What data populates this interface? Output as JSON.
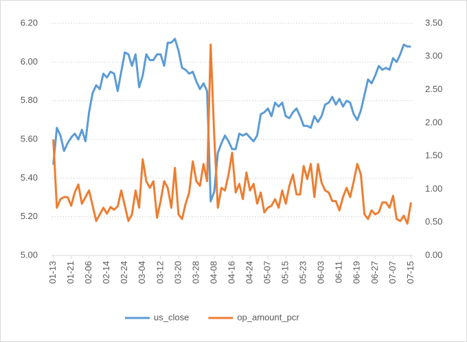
{
  "chart_data": {
    "type": "line",
    "categories": [
      "01-13",
      null,
      null,
      null,
      null,
      "01-21",
      null,
      null,
      null,
      null,
      "02-06",
      null,
      null,
      null,
      null,
      "02-14",
      null,
      null,
      null,
      null,
      "02-24",
      null,
      null,
      null,
      null,
      "03-04",
      null,
      null,
      null,
      null,
      "03-12",
      null,
      null,
      null,
      null,
      "03-20",
      null,
      null,
      null,
      null,
      "03-28",
      null,
      null,
      null,
      null,
      "04-08",
      null,
      null,
      null,
      null,
      "04-16",
      null,
      null,
      null,
      null,
      "04-24",
      null,
      null,
      null,
      null,
      "05-07",
      null,
      null,
      null,
      null,
      "05-15",
      null,
      null,
      null,
      null,
      "05-23",
      null,
      null,
      null,
      null,
      "06-03",
      null,
      null,
      null,
      null,
      "06-11",
      null,
      null,
      null,
      null,
      "06-19",
      null,
      null,
      null,
      null,
      "06-27",
      null,
      null,
      null,
      null,
      "07-07",
      null,
      null,
      null,
      null,
      "07-15"
    ],
    "series": [
      {
        "name": "us_close",
        "color": "#5b9bd5",
        "values": [
          5.47,
          5.66,
          5.62,
          5.54,
          5.58,
          5.61,
          5.63,
          5.6,
          5.65,
          5.59,
          5.74,
          5.84,
          5.88,
          5.86,
          5.94,
          5.92,
          5.95,
          5.94,
          5.85,
          5.95,
          6.05,
          6.04,
          5.98,
          6.04,
          5.87,
          5.93,
          6.04,
          6.01,
          6.01,
          6.04,
          6.04,
          5.98,
          6.1,
          6.1,
          6.12,
          6.06,
          5.97,
          5.96,
          5.94,
          5.95,
          5.9,
          5.86,
          5.89,
          5.85,
          5.28,
          5.33,
          5.53,
          5.58,
          5.62,
          5.59,
          5.55,
          5.55,
          5.63,
          5.62,
          5.63,
          5.61,
          5.59,
          5.62,
          5.73,
          5.74,
          5.76,
          5.72,
          5.79,
          5.77,
          5.79,
          5.72,
          5.71,
          5.74,
          5.76,
          5.72,
          5.67,
          5.67,
          5.66,
          5.72,
          5.69,
          5.72,
          5.78,
          5.79,
          5.82,
          5.78,
          5.81,
          5.77,
          5.8,
          5.79,
          5.73,
          5.7,
          5.75,
          5.83,
          5.91,
          5.89,
          5.93,
          5.98,
          5.96,
          5.97,
          5.96,
          6.02,
          6.0,
          6.04,
          6.09,
          6.08,
          6.08
        ]
      },
      {
        "name": "op_amount_pcr",
        "color": "#ed7d31",
        "axis": "y2",
        "values": [
          1.75,
          0.72,
          0.85,
          0.88,
          0.88,
          0.75,
          0.95,
          1.07,
          0.78,
          0.88,
          0.98,
          0.75,
          0.52,
          0.62,
          0.72,
          0.63,
          0.73,
          0.69,
          0.74,
          0.98,
          0.75,
          0.52,
          0.62,
          0.98,
          0.72,
          1.45,
          1.12,
          1.02,
          1.12,
          0.57,
          0.82,
          1.12,
          1.02,
          0.72,
          1.32,
          0.62,
          0.55,
          0.78,
          0.95,
          1.42,
          1.12,
          1.05,
          1.38,
          1.12,
          3.18,
          1.8,
          0.72,
          1.02,
          0.98,
          1.22,
          1.55,
          0.95,
          1.08,
          0.85,
          1.25,
          0.98,
          1.08,
          0.78,
          0.95,
          0.65,
          0.72,
          0.75,
          0.85,
          0.72,
          0.98,
          0.78,
          1.05,
          1.22,
          0.92,
          0.92,
          1.35,
          1.15,
          1.38,
          0.88,
          1.38,
          1.1,
          0.98,
          0.95,
          0.82,
          0.82,
          0.68,
          0.88,
          1.02,
          0.88,
          1.12,
          1.38,
          1.22,
          0.62,
          0.55,
          0.68,
          0.62,
          0.65,
          0.8,
          0.8,
          0.72,
          0.9,
          0.55,
          0.52,
          0.6,
          0.48,
          0.8
        ]
      }
    ],
    "ylim": [
      5,
      6.2
    ],
    "yticks": [
      {
        "value": 5,
        "label": "5.00"
      },
      {
        "value": 5.2,
        "label": "5.20"
      },
      {
        "value": 5.4,
        "label": "5.40"
      },
      {
        "value": 5.6,
        "label": "5.60"
      },
      {
        "value": 5.8,
        "label": "5.80"
      },
      {
        "value": 6,
        "label": "6.00"
      },
      {
        "value": 6.2,
        "label": "6.20"
      }
    ],
    "y2lim": [
      0,
      3.5
    ],
    "y2ticks": [
      {
        "value": 0,
        "label": "0.00"
      },
      {
        "value": 0.5,
        "label": "0.50"
      },
      {
        "value": 1,
        "label": "1.00"
      },
      {
        "value": 1.5,
        "label": "1.50"
      },
      {
        "value": 2,
        "label": "2.00"
      },
      {
        "value": 2.5,
        "label": "2.50"
      },
      {
        "value": 3,
        "label": "3.00"
      },
      {
        "value": 3.5,
        "label": "3.50"
      }
    ],
    "grid": true,
    "legend": "bottom"
  }
}
